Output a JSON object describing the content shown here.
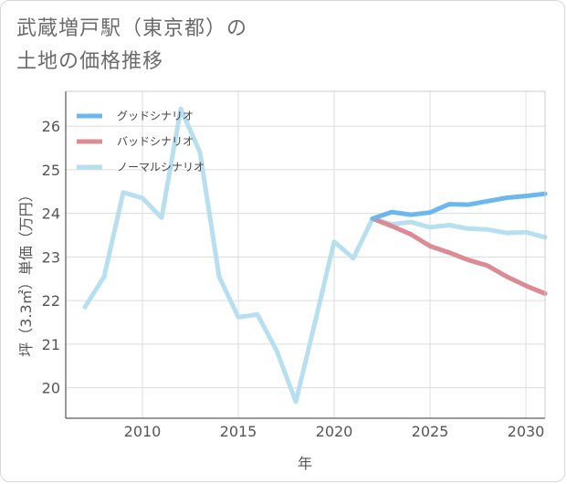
{
  "title_lines": [
    "武蔵増戸駅（東京都）の",
    "土地の価格推移"
  ],
  "chart_data": {
    "type": "line",
    "xlabel": "年",
    "ylabel": "坪（3.3㎡）単価（万円）",
    "xlim": [
      2006,
      2031
    ],
    "ylim": [
      19.3,
      26.8
    ],
    "x_ticks": [
      2010,
      2015,
      2020,
      2025,
      2030
    ],
    "y_ticks": [
      20,
      21,
      22,
      23,
      24,
      25,
      26
    ],
    "legend_position": "top-left",
    "series": [
      {
        "name": "グッドシナリオ",
        "color": "#6cb8ee",
        "x": [
          2022,
          2023,
          2024,
          2025,
          2026,
          2027,
          2028,
          2029,
          2030,
          2031
        ],
        "values": [
          23.88,
          24.03,
          23.97,
          24.02,
          24.21,
          24.2,
          24.28,
          24.36,
          24.4,
          24.45
        ]
      },
      {
        "name": "バッドシナリオ",
        "color": "#dc8a93",
        "x": [
          2022,
          2023,
          2024,
          2025,
          2026,
          2027,
          2028,
          2029,
          2030,
          2031
        ],
        "values": [
          23.88,
          23.71,
          23.52,
          23.25,
          23.1,
          22.93,
          22.8,
          22.55,
          22.34,
          22.16
        ]
      },
      {
        "name": "ノーマルシナリオ",
        "color": "#b7dff0",
        "x": [
          2007,
          2008,
          2009,
          2010,
          2011,
          2012,
          2013,
          2014,
          2015,
          2016,
          2017,
          2018,
          2019,
          2020,
          2021,
          2022,
          2023,
          2024,
          2025,
          2026,
          2027,
          2028,
          2029,
          2030,
          2031
        ],
        "values": [
          21.85,
          22.55,
          24.48,
          24.35,
          23.9,
          26.4,
          25.4,
          22.55,
          21.62,
          21.68,
          20.85,
          19.68,
          21.5,
          23.35,
          22.97,
          23.88,
          23.75,
          23.8,
          23.68,
          23.73,
          23.65,
          23.63,
          23.55,
          23.57,
          23.45
        ]
      }
    ]
  }
}
